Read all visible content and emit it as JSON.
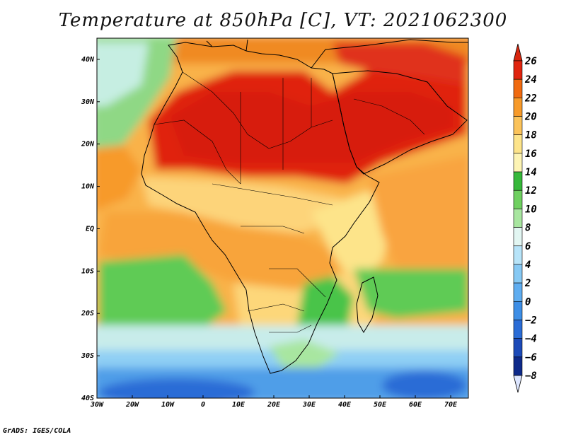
{
  "title": "Temperature at 850hPa [C], VT: 2021062300",
  "credit": "GrADS: IGES/COLA",
  "map": {
    "extent": {
      "lon_min": -30,
      "lon_max": 75,
      "lat_min": -40,
      "lat_max": 45
    },
    "x_ticks": [
      {
        "lon": -30,
        "label": "30W"
      },
      {
        "lon": -20,
        "label": "20W"
      },
      {
        "lon": -10,
        "label": "10W"
      },
      {
        "lon": 0,
        "label": "0"
      },
      {
        "lon": 10,
        "label": "10E"
      },
      {
        "lon": 20,
        "label": "20E"
      },
      {
        "lon": 30,
        "label": "30E"
      },
      {
        "lon": 40,
        "label": "40E"
      },
      {
        "lon": 50,
        "label": "50E"
      },
      {
        "lon": 60,
        "label": "60E"
      },
      {
        "lon": 70,
        "label": "70E"
      }
    ],
    "y_ticks": [
      {
        "lat": 40,
        "label": "40N"
      },
      {
        "lat": 30,
        "label": "30N"
      },
      {
        "lat": 20,
        "label": "20N"
      },
      {
        "lat": 10,
        "label": "10N"
      },
      {
        "lat": 0,
        "label": "EQ"
      },
      {
        "lat": -10,
        "label": "10S"
      },
      {
        "lat": -20,
        "label": "20S"
      },
      {
        "lat": -30,
        "label": "30S"
      },
      {
        "lat": -40,
        "label": "40S"
      }
    ]
  },
  "colorbar": {
    "levels": [
      {
        "label": "26",
        "color": "#a50a0a"
      },
      {
        "label": "24",
        "color": "#e0240e"
      },
      {
        "label": "22",
        "color": "#f06a10"
      },
      {
        "label": "20",
        "color": "#f79a2a"
      },
      {
        "label": "18",
        "color": "#fbc35a"
      },
      {
        "label": "16",
        "color": "#fde48a"
      },
      {
        "label": "14",
        "color": "#fdf4b4"
      },
      {
        "label": "12",
        "color": "#36b83a"
      },
      {
        "label": "10",
        "color": "#6fd060"
      },
      {
        "label": "8",
        "color": "#a8e6a0"
      },
      {
        "label": "6",
        "color": "#e2f6f2"
      },
      {
        "label": "4",
        "color": "#b7e4f9"
      },
      {
        "label": "2",
        "color": "#86c9f4"
      },
      {
        "label": "0",
        "color": "#5fadf0"
      },
      {
        "label": "−2",
        "color": "#3d8ee6"
      },
      {
        "label": "−4",
        "color": "#2a6cd6"
      },
      {
        "label": "−6",
        "color": "#1c4ab8"
      },
      {
        "label": "−8",
        "color": "#0e2a8a"
      }
    ],
    "top_color": "#d8260e",
    "bottom_color": "#ffffff",
    "low_end_color": "#0a1e6e"
  }
}
